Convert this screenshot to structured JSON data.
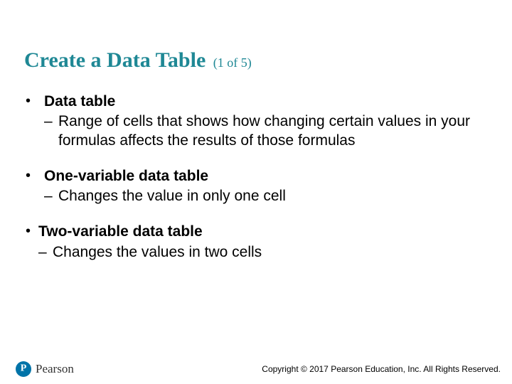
{
  "colors": {
    "title": "#1f8895",
    "text": "#000000",
    "logo_bg": "#0073a8",
    "logo_fg": "#ffffff",
    "background": "#ffffff"
  },
  "typography": {
    "title_family": "Times New Roman",
    "title_size_pt": 30,
    "subtitle_size_pt": 18,
    "body_family": "Arial",
    "body_size_pt": 21,
    "footer_size_pt": 12
  },
  "title": {
    "main": "Create a Data Table",
    "suffix": "(1 of 5)"
  },
  "bullets": [
    {
      "term": "Data table",
      "desc": "Range of cells that shows how changing certain values in your formulas affects the results of those formulas"
    },
    {
      "term": "One-variable data table",
      "desc": "Changes the value in only one cell"
    },
    {
      "term": "Two-variable data table",
      "desc": "Changes the values in two cells"
    }
  ],
  "brand": {
    "mark_letter": "P",
    "name": "Pearson"
  },
  "footer": "Copyright © 2017 Pearson Education, Inc. All Rights Reserved."
}
